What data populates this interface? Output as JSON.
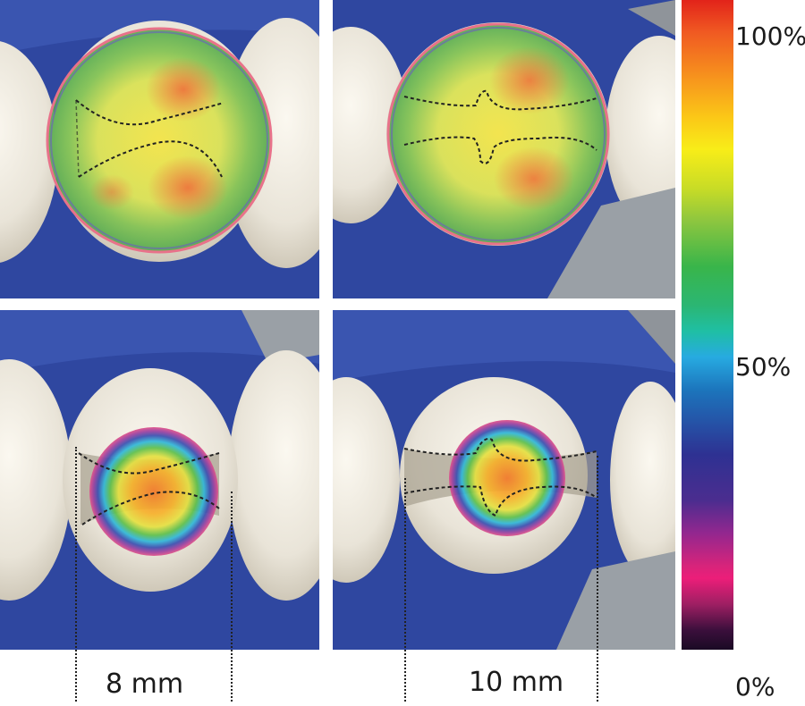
{
  "measurements": {
    "left_width": "8 mm",
    "right_width": "10 mm"
  },
  "color_scale": {
    "max_label": "100%",
    "mid_label": "50%",
    "min_label": "0%"
  },
  "panels": [
    {
      "position": "top-left",
      "overlay": "large-green-yellow-heatmap"
    },
    {
      "position": "top-right",
      "overlay": "large-green-yellow-heatmap"
    },
    {
      "position": "bottom-left",
      "overlay": "small-rainbow-heatmap"
    },
    {
      "position": "bottom-right",
      "overlay": "small-rainbow-heatmap"
    }
  ]
}
